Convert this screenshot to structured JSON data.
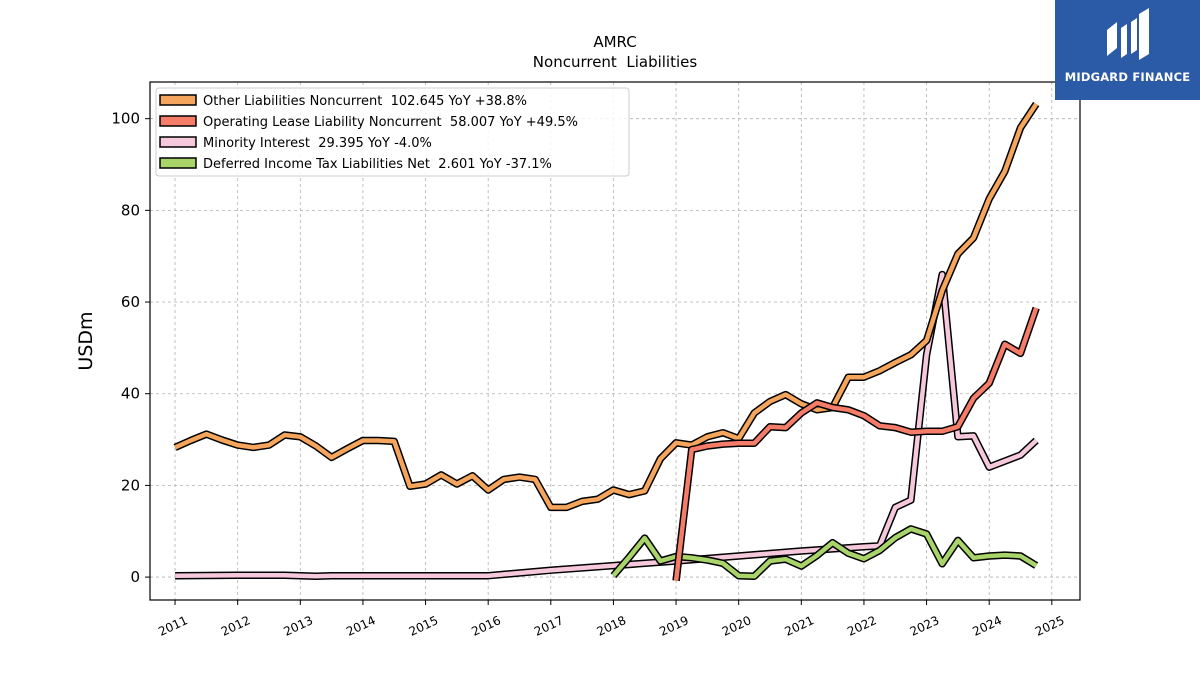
{
  "brand": {
    "name": "MIDGARD FINANCE",
    "logo_color": "#2b5aa7"
  },
  "chart_data": {
    "type": "line",
    "title": "AMRC",
    "subtitle": "Noncurrent  Liabilities",
    "ylabel": "USDm",
    "xlabel": "",
    "xlim": [
      2010.6,
      2025.45
    ],
    "ylim": [
      -5,
      108
    ],
    "x_ticks": [
      2011,
      2012,
      2013,
      2014,
      2015,
      2016,
      2017,
      2018,
      2019,
      2020,
      2021,
      2022,
      2023,
      2024,
      2025
    ],
    "y_ticks": [
      0,
      20,
      40,
      60,
      80,
      100
    ],
    "grid": true,
    "legend_position": "top-left",
    "series": [
      {
        "name": "Other Liabilities Noncurrent  102.645 YoY +38.8%",
        "color": "#f5a55c",
        "points": [
          [
            2011.0,
            28.3
          ],
          [
            2011.25,
            29.8
          ],
          [
            2011.5,
            31.2
          ],
          [
            2011.75,
            29.9
          ],
          [
            2012.0,
            28.8
          ],
          [
            2012.25,
            28.3
          ],
          [
            2012.5,
            28.8
          ],
          [
            2012.75,
            31.0
          ],
          [
            2013.0,
            30.6
          ],
          [
            2013.25,
            28.6
          ],
          [
            2013.5,
            26.1
          ],
          [
            2013.75,
            28.0
          ],
          [
            2014.0,
            29.8
          ],
          [
            2014.25,
            29.8
          ],
          [
            2014.5,
            29.6
          ],
          [
            2014.75,
            19.8
          ],
          [
            2015.0,
            20.3
          ],
          [
            2015.25,
            22.3
          ],
          [
            2015.5,
            20.3
          ],
          [
            2015.75,
            22.1
          ],
          [
            2016.0,
            19.0
          ],
          [
            2016.25,
            21.3
          ],
          [
            2016.5,
            21.8
          ],
          [
            2016.75,
            21.3
          ],
          [
            2017.0,
            15.2
          ],
          [
            2017.25,
            15.2
          ],
          [
            2017.5,
            16.5
          ],
          [
            2017.75,
            17.0
          ],
          [
            2018.0,
            19.0
          ],
          [
            2018.25,
            18.0
          ],
          [
            2018.5,
            18.8
          ],
          [
            2018.75,
            25.8
          ],
          [
            2019.0,
            29.3
          ],
          [
            2019.25,
            28.8
          ],
          [
            2019.5,
            30.6
          ],
          [
            2019.75,
            31.5
          ],
          [
            2020.0,
            30.2
          ],
          [
            2020.25,
            35.8
          ],
          [
            2020.5,
            38.3
          ],
          [
            2020.75,
            39.8
          ],
          [
            2021.0,
            37.8
          ],
          [
            2021.25,
            36.5
          ],
          [
            2021.5,
            37.0
          ],
          [
            2021.75,
            43.6
          ],
          [
            2022.0,
            43.6
          ],
          [
            2022.25,
            45.0
          ],
          [
            2022.5,
            46.8
          ],
          [
            2022.75,
            48.5
          ],
          [
            2023.0,
            51.6
          ],
          [
            2023.25,
            62.5
          ],
          [
            2023.5,
            70.5
          ],
          [
            2023.75,
            74.0
          ],
          [
            2024.0,
            82.5
          ],
          [
            2024.25,
            88.5
          ],
          [
            2024.5,
            98.0
          ],
          [
            2024.75,
            103.2
          ]
        ]
      },
      {
        "name": "Operating Lease Liability Noncurrent  58.007 YoY +49.5%",
        "color": "#f47c68",
        "points": [
          [
            2019.0,
            -0.8
          ],
          [
            2019.25,
            27.8
          ],
          [
            2019.5,
            28.6
          ],
          [
            2019.75,
            29.0
          ],
          [
            2020.0,
            29.2
          ],
          [
            2020.25,
            29.2
          ],
          [
            2020.5,
            32.8
          ],
          [
            2020.75,
            32.6
          ],
          [
            2021.0,
            35.8
          ],
          [
            2021.25,
            38.0
          ],
          [
            2021.5,
            37.0
          ],
          [
            2021.75,
            36.5
          ],
          [
            2022.0,
            35.2
          ],
          [
            2022.25,
            33.0
          ],
          [
            2022.5,
            32.6
          ],
          [
            2022.75,
            31.6
          ],
          [
            2023.0,
            31.8
          ],
          [
            2023.25,
            31.8
          ],
          [
            2023.5,
            32.8
          ],
          [
            2023.75,
            39.0
          ],
          [
            2024.0,
            42.3
          ],
          [
            2024.25,
            50.8
          ],
          [
            2024.5,
            48.8
          ],
          [
            2024.75,
            58.7
          ]
        ]
      },
      {
        "name": "Minority Interest  29.395 YoY -4.0%",
        "color": "#f6c8dc",
        "points": [
          [
            2011.0,
            0.3
          ],
          [
            2012.0,
            0.4
          ],
          [
            2012.75,
            0.4
          ],
          [
            2013.25,
            0.2
          ],
          [
            2013.5,
            0.3
          ],
          [
            2014.0,
            0.3
          ],
          [
            2015.0,
            0.3
          ],
          [
            2016.0,
            0.3
          ],
          [
            2017.0,
            1.5
          ],
          [
            2018.0,
            2.5
          ],
          [
            2019.0,
            3.5
          ],
          [
            2020.0,
            4.6
          ],
          [
            2021.0,
            5.7
          ],
          [
            2022.0,
            6.6
          ],
          [
            2022.25,
            6.8
          ],
          [
            2022.5,
            15.2
          ],
          [
            2022.75,
            16.8
          ],
          [
            2023.0,
            48.5
          ],
          [
            2023.25,
            66.0
          ],
          [
            2023.5,
            30.6
          ],
          [
            2023.75,
            30.8
          ],
          [
            2024.0,
            24.0
          ],
          [
            2024.25,
            25.3
          ],
          [
            2024.5,
            26.6
          ],
          [
            2024.75,
            29.8
          ]
        ]
      },
      {
        "name": "Deferred Income Tax Liabilities Net  2.601 YoY -37.1%",
        "color": "#a8d46a",
        "points": [
          [
            2018.0,
            0.3
          ],
          [
            2018.25,
            4.3
          ],
          [
            2018.5,
            8.5
          ],
          [
            2018.75,
            3.5
          ],
          [
            2019.0,
            4.5
          ],
          [
            2019.25,
            4.2
          ],
          [
            2019.5,
            3.7
          ],
          [
            2019.75,
            3.0
          ],
          [
            2020.0,
            0.3
          ],
          [
            2020.25,
            0.2
          ],
          [
            2020.5,
            3.5
          ],
          [
            2020.75,
            3.9
          ],
          [
            2021.0,
            2.4
          ],
          [
            2021.25,
            4.7
          ],
          [
            2021.5,
            7.5
          ],
          [
            2021.75,
            5.2
          ],
          [
            2022.0,
            4.0
          ],
          [
            2022.25,
            5.8
          ],
          [
            2022.5,
            8.6
          ],
          [
            2022.75,
            10.5
          ],
          [
            2023.0,
            9.4
          ],
          [
            2023.25,
            2.9
          ],
          [
            2023.5,
            8.0
          ],
          [
            2023.75,
            4.2
          ],
          [
            2024.0,
            4.6
          ],
          [
            2024.25,
            4.8
          ],
          [
            2024.5,
            4.6
          ],
          [
            2024.75,
            2.5
          ]
        ]
      }
    ]
  }
}
